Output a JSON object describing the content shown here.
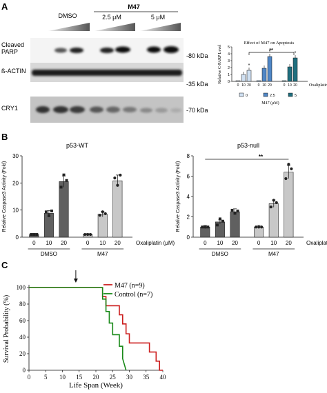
{
  "panels": {
    "A": {
      "letter": "A",
      "blot": {
        "header_dmso": "DMSO",
        "header_m47": "M47",
        "header_25": "2.5 μM",
        "header_5": "5 μM",
        "row_labels": [
          "Cleaved",
          "PARP",
          "ß-ACTIN",
          "CRY1"
        ],
        "markers": [
          "-80 kDa",
          "-35 kDa",
          "-70 kDa"
        ]
      }
    },
    "B": {
      "letter": "B"
    },
    "C": {
      "letter": "C"
    }
  },
  "chart_data": [
    {
      "type": "bar",
      "panel": "A-inset",
      "title": "Effect of M47 on Apoptosis",
      "ylabel": "Relative C-PARP Level",
      "ylim": [
        0,
        5
      ],
      "yticks": [
        0,
        1,
        2,
        3,
        4,
        5
      ],
      "categories": [
        "0",
        "10",
        "20"
      ],
      "xlabel": "Oxaliplatin (μM)",
      "legend_title": "M47 (μM)",
      "legend": [
        "0",
        "2.5",
        "5"
      ],
      "group_colors": [
        "#cfe0f2",
        "#4f86c6",
        "#1f6f7f"
      ],
      "series": [
        {
          "name": "0",
          "values": [
            0.1,
            1.0,
            1.6
          ]
        },
        {
          "name": "2.5",
          "values": [
            0.1,
            1.9,
            3.6
          ]
        },
        {
          "name": "5",
          "values": [
            0.1,
            2.1,
            3.4
          ]
        }
      ],
      "annotations": [
        "**",
        "*",
        "*",
        "*"
      ]
    },
    {
      "type": "bar",
      "panel": "B-left",
      "title": "p53-WT",
      "ylabel": "Relative Caspase3 Activity (Fold)",
      "ylim": [
        0,
        30
      ],
      "yticks": [
        0,
        10,
        20,
        30
      ],
      "categories": [
        "0",
        "10",
        "20",
        "0",
        "10",
        "20"
      ],
      "groups": [
        "DMSO",
        "M47"
      ],
      "xlabel": "Oxaliplatin (μM)",
      "values": [
        1.0,
        8.8,
        20.5,
        1.0,
        8.5,
        20.8
      ],
      "colors": [
        "#606060",
        "#606060",
        "#606060",
        "#c8c8c8",
        "#c8c8c8",
        "#c8c8c8"
      ]
    },
    {
      "type": "bar",
      "panel": "B-right",
      "title": "p53-null",
      "ylabel": "Relative Caspase3 Activity (Fold)",
      "ylim": [
        0,
        8
      ],
      "yticks": [
        0,
        2,
        4,
        6,
        8
      ],
      "categories": [
        "0",
        "10",
        "20",
        "0",
        "10",
        "20"
      ],
      "groups": [
        "DMSO",
        "M47"
      ],
      "xlabel": "Oxaliplatin (μM)",
      "values": [
        1.0,
        1.5,
        2.5,
        1.0,
        3.3,
        6.4
      ],
      "colors": [
        "#606060",
        "#606060",
        "#606060",
        "#c8c8c8",
        "#c8c8c8",
        "#c8c8c8"
      ],
      "annotation": "**"
    },
    {
      "type": "line",
      "panel": "C",
      "xlabel": "Life Span (Week)",
      "ylabel": "Survival Probability (%)",
      "xlim": [
        0,
        40
      ],
      "ylim": [
        0,
        100
      ],
      "xticks": [
        0,
        5,
        10,
        15,
        20,
        25,
        30,
        35,
        40
      ],
      "yticks": [
        0,
        20,
        40,
        60,
        80,
        100
      ],
      "legend": [
        "M47 (n=9)",
        "Control (n=7)"
      ],
      "series": [
        {
          "name": "M47 (n=9)",
          "color": "#cc1f1f",
          "x": [
            0,
            22,
            22,
            23,
            23,
            27,
            27,
            28,
            28,
            29,
            29,
            30,
            30,
            36,
            36,
            38,
            38,
            39,
            39,
            40
          ],
          "y": [
            100,
            100,
            89,
            89,
            78,
            78,
            67,
            67,
            56,
            56,
            44,
            44,
            33,
            33,
            22,
            22,
            11,
            11,
            0,
            0
          ]
        },
        {
          "name": "Control (n=7)",
          "color": "#1a8a1a",
          "x": [
            0,
            22,
            22,
            23,
            23,
            24,
            24,
            25,
            25,
            27,
            27,
            28,
            28,
            29
          ],
          "y": [
            100,
            100,
            86,
            86,
            71,
            71,
            57,
            57,
            43,
            43,
            29,
            29,
            14,
            0
          ]
        }
      ],
      "arrow_at_x": 14
    }
  ]
}
